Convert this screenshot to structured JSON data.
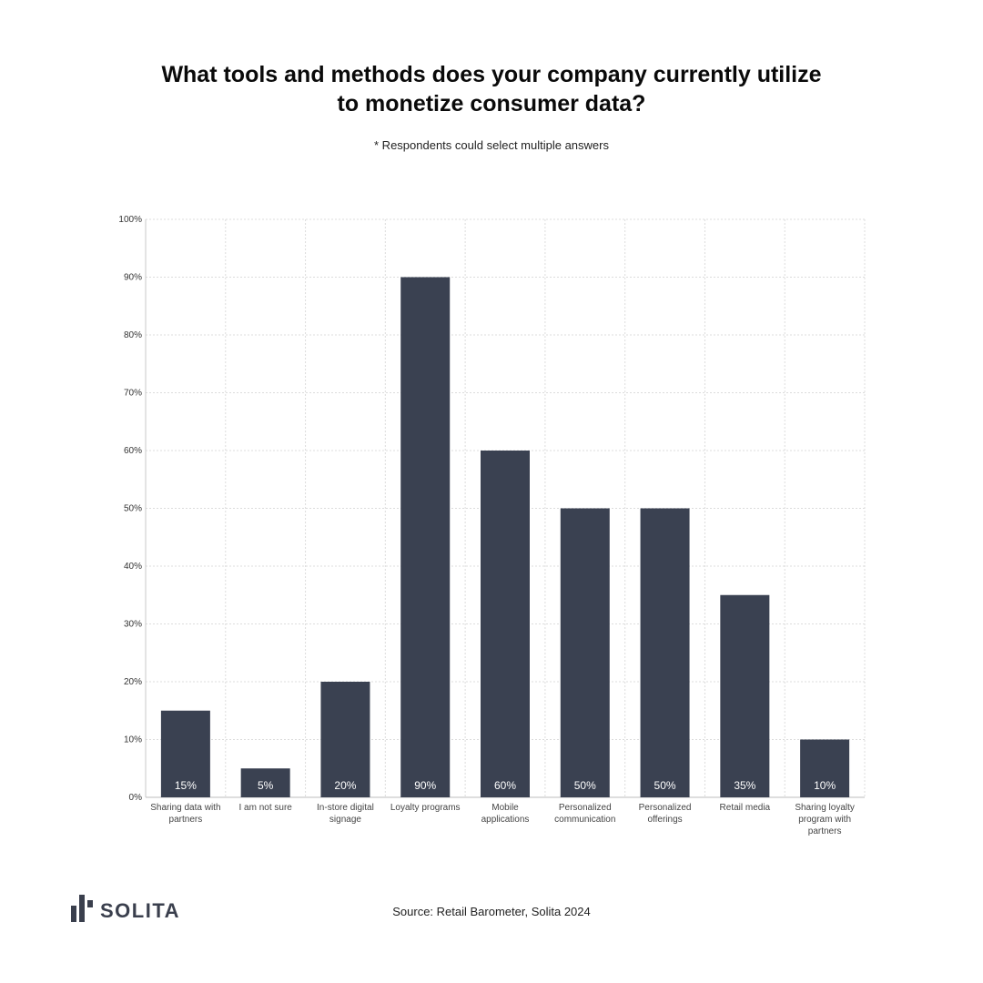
{
  "title_line1": "What tools and methods does your company currently utilize",
  "title_line2": "to monetize consumer data?",
  "subtitle": "* Respondents could select multiple answers",
  "source": "Source: Retail Barometer, Solita 2024",
  "logo": {
    "text": "SOLITA",
    "color": "#3a3f4d"
  },
  "chart_data": {
    "type": "bar",
    "categories": [
      [
        "Sharing data with",
        "partners"
      ],
      [
        "I am not sure"
      ],
      [
        "In-store digital",
        "signage"
      ],
      [
        "Loyalty programs"
      ],
      [
        "Mobile",
        "applications"
      ],
      [
        "Personalized",
        "communication"
      ],
      [
        "Personalized",
        "offerings"
      ],
      [
        "Retail media"
      ],
      [
        "Sharing loyalty",
        "program with",
        "partners"
      ]
    ],
    "values": [
      15,
      5,
      20,
      90,
      60,
      50,
      50,
      35,
      10
    ],
    "value_labels": [
      "15%",
      "5%",
      "20%",
      "90%",
      "60%",
      "50%",
      "50%",
      "35%",
      "10%"
    ],
    "yticks": [
      "0%",
      "10%",
      "20%",
      "30%",
      "40%",
      "50%",
      "60%",
      "70%",
      "80%",
      "90%",
      "100%"
    ],
    "ylim": [
      0,
      100
    ],
    "bar_color": "#3a4151",
    "grid": true
  }
}
